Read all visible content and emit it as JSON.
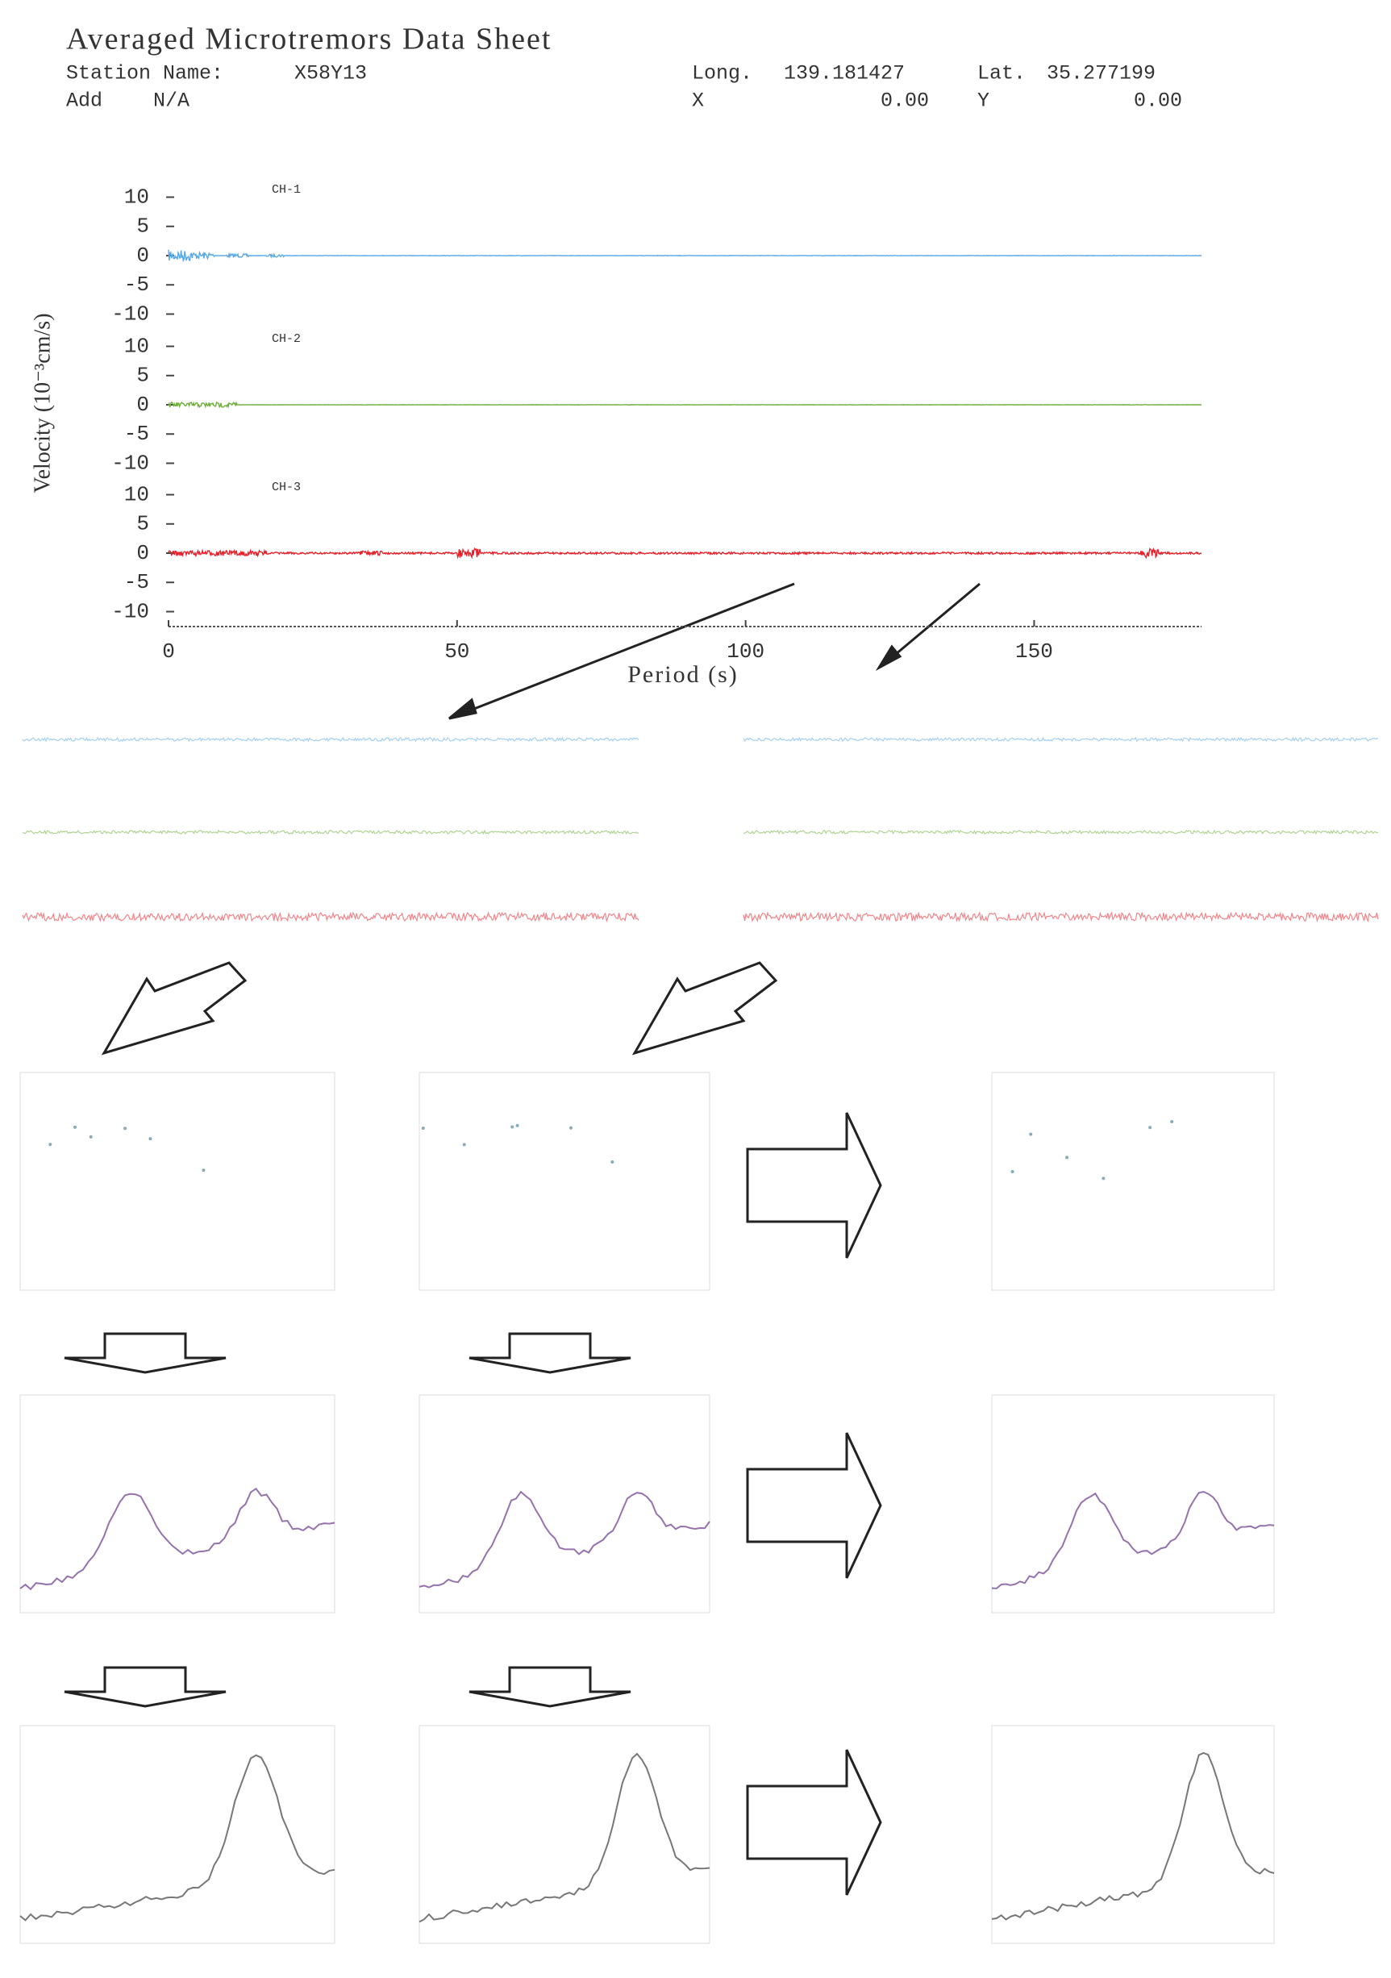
{
  "header": {
    "title": "Averaged Microtremors Data Sheet",
    "station_label": "Station Name:",
    "station": "X58Y13",
    "add_label": "Add",
    "add": "N/A",
    "long_label": "Long.",
    "long": "139.181427",
    "lat_label": "Lat.",
    "lat": "35.277199",
    "x_label": "X",
    "x": "0.00",
    "y_label": "Y",
    "y": "0.00"
  },
  "chart_data": {
    "type": "line",
    "y_label": "Velocity (10⁻³cm/s)",
    "x_label": "Period (s)",
    "channels": [
      "CH-1",
      "CH-2",
      "CH-3"
    ],
    "colors": [
      "#5aa9e6",
      "#6fae3a",
      "#e8202a"
    ],
    "xlim": [
      0,
      179
    ],
    "xticks": [
      0,
      50,
      100,
      150
    ],
    "ylim": [
      -10,
      10
    ],
    "yticks": [
      10,
      5,
      0,
      -5,
      -10
    ]
  }
}
